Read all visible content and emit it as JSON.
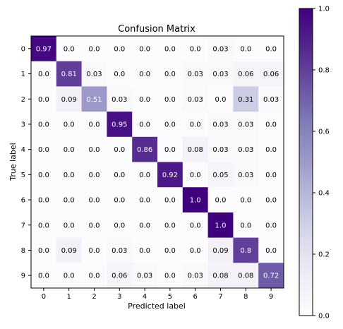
{
  "chart_data": {
    "type": "heatmap",
    "title": "Confusion Matrix",
    "xlabel": "Predicted label",
    "ylabel": "True label",
    "x_categories": [
      "0",
      "1",
      "2",
      "3",
      "4",
      "5",
      "6",
      "7",
      "8",
      "9"
    ],
    "y_categories": [
      "0",
      "1",
      "2",
      "3",
      "4",
      "5",
      "6",
      "7",
      "8",
      "9"
    ],
    "matrix": [
      [
        0.97,
        0.0,
        0.0,
        0.0,
        0.0,
        0.0,
        0.0,
        0.03,
        0.0,
        0.0
      ],
      [
        0.0,
        0.81,
        0.03,
        0.0,
        0.0,
        0.0,
        0.03,
        0.03,
        0.06,
        0.06
      ],
      [
        0.0,
        0.09,
        0.51,
        0.03,
        0.0,
        0.0,
        0.03,
        0.0,
        0.31,
        0.03
      ],
      [
        0.0,
        0.0,
        0.0,
        0.95,
        0.0,
        0.0,
        0.0,
        0.03,
        0.03,
        0.0
      ],
      [
        0.0,
        0.0,
        0.0,
        0.0,
        0.86,
        0.0,
        0.08,
        0.03,
        0.03,
        0.0
      ],
      [
        0.0,
        0.0,
        0.0,
        0.0,
        0.0,
        0.92,
        0.0,
        0.05,
        0.03,
        0.0
      ],
      [
        0.0,
        0.0,
        0.0,
        0.0,
        0.0,
        0.0,
        1.0,
        0.0,
        0.0,
        0.0
      ],
      [
        0.0,
        0.0,
        0.0,
        0.0,
        0.0,
        0.0,
        0.0,
        1.0,
        0.0,
        0.0
      ],
      [
        0.0,
        0.09,
        0.0,
        0.03,
        0.0,
        0.0,
        0.0,
        0.09,
        0.8,
        0.0
      ],
      [
        0.0,
        0.0,
        0.0,
        0.06,
        0.03,
        0.0,
        0.03,
        0.08,
        0.08,
        0.72
      ]
    ],
    "cell_labels": [
      [
        "0.97",
        "0.0",
        "0.0",
        "0.0",
        "0.0",
        "0.0",
        "0.0",
        "0.03",
        "0.0",
        "0.0"
      ],
      [
        "0.0",
        "0.81",
        "0.03",
        "0.0",
        "0.0",
        "0.0",
        "0.03",
        "0.03",
        "0.06",
        "0.06"
      ],
      [
        "0.0",
        "0.09",
        "0.51",
        "0.03",
        "0.0",
        "0.0",
        "0.03",
        "0.0",
        "0.31",
        "0.03"
      ],
      [
        "0.0",
        "0.0",
        "0.0",
        "0.95",
        "0.0",
        "0.0",
        "0.0",
        "0.03",
        "0.03",
        "0.0"
      ],
      [
        "0.0",
        "0.0",
        "0.0",
        "0.0",
        "0.86",
        "0.0",
        "0.08",
        "0.03",
        "0.03",
        "0.0"
      ],
      [
        "0.0",
        "0.0",
        "0.0",
        "0.0",
        "0.0",
        "0.92",
        "0.0",
        "0.05",
        "0.03",
        "0.0"
      ],
      [
        "0.0",
        "0.0",
        "0.0",
        "0.0",
        "0.0",
        "0.0",
        "1.0",
        "0.0",
        "0.0",
        "0.0"
      ],
      [
        "0.0",
        "0.0",
        "0.0",
        "0.0",
        "0.0",
        "0.0",
        "0.0",
        "1.0",
        "0.0",
        "0.0"
      ],
      [
        "0.0",
        "0.09",
        "0.0",
        "0.03",
        "0.0",
        "0.0",
        "0.0",
        "0.09",
        "0.8",
        "0.0"
      ],
      [
        "0.0",
        "0.0",
        "0.0",
        "0.06",
        "0.03",
        "0.0",
        "0.03",
        "0.08",
        "0.08",
        "0.72"
      ]
    ],
    "value_range": [
      0.0,
      1.0
    ],
    "colormap": "Purples",
    "colorbar": {
      "ticks": [
        0.0,
        0.2,
        0.4,
        0.6,
        0.8,
        1.0
      ],
      "tick_labels": [
        "0.0",
        "0.2",
        "0.4",
        "0.6",
        "0.8",
        "1.0"
      ]
    },
    "grid": false,
    "legend": "none"
  },
  "colors": {
    "background": "#ffffff",
    "axis": "#000000",
    "text": "#000000",
    "text_on_dark": "#ffffff",
    "colormap_stops": [
      "#fcfbfd",
      "#efedf5",
      "#dadaeb",
      "#bcbddc",
      "#9e9ac8",
      "#807dba",
      "#6a51a3",
      "#54278f",
      "#3f007d"
    ]
  }
}
